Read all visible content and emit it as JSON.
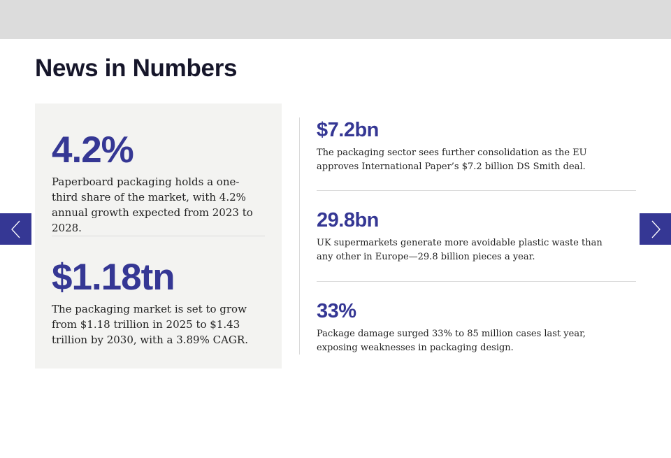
{
  "title": "News in Numbers",
  "featured": [
    {
      "stat": "4.2%",
      "text": "Paperboard packaging holds a one-third share of the market, with 4.2% annual growth expected from 2023 to 2028."
    },
    {
      "stat": "$1.18tn",
      "text": "The packaging market is set to grow from $1.18 trillion in 2025 to $1.43 trillion by 2030, with a 3.89% CAGR."
    }
  ],
  "items": [
    {
      "stat": "$7.2bn",
      "text": "The packaging sector sees further consolidation as the EU approves International Paper’s $7.2 billion DS Smith deal."
    },
    {
      "stat": "29.8bn",
      "text": "UK supermarkets generate more avoidable plastic waste than any other in Europe—29.8 billion pieces a year."
    },
    {
      "stat": "33%",
      "text": "Package damage surged 33% to 85 million cases last year, exposing weaknesses in packaging design."
    }
  ],
  "nav": {
    "prev_icon": "chevron-left-icon",
    "next_icon": "chevron-right-icon"
  },
  "colors": {
    "accent": "#353794",
    "card_bg": "#f3f3f1",
    "top_bar": "#dcdcdc"
  }
}
